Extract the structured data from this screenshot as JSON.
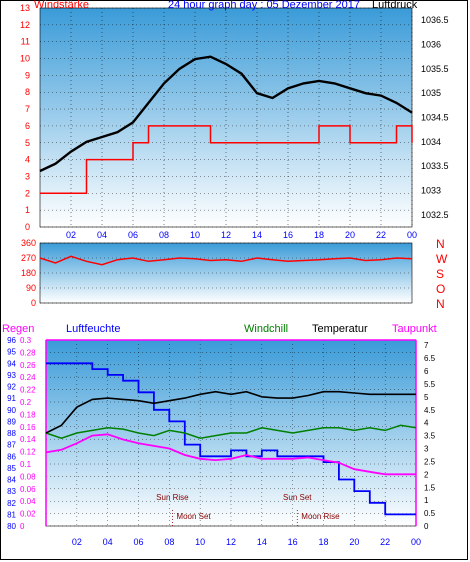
{
  "colors": {
    "wind": "#ff0000",
    "direction": "#0000ff",
    "pressure": "#000000",
    "rain": "#ff0000",
    "humidity": "#0000ff",
    "windchill": "#008000",
    "temperature": "#000000",
    "dewpoint": "#ff00ff",
    "bg_top": "#3a9bd8",
    "bg_bottom": "#ffffff"
  },
  "chart_data": [
    {
      "type": "line",
      "title": "24 hour graph day : 05 Dezember 2017",
      "left_label": "Windstärke",
      "right_label": "Luftdruck",
      "x_ticks": [
        "02",
        "04",
        "06",
        "08",
        "10",
        "12",
        "14",
        "16",
        "18",
        "20",
        "22",
        "00"
      ],
      "y_left_ticks": [
        "0",
        "1",
        "2",
        "3",
        "4",
        "5",
        "6",
        "7",
        "8",
        "9",
        "10",
        "11",
        "12",
        "13"
      ],
      "y_left_range": [
        0,
        13
      ],
      "y_right_ticks": [
        "1032.5",
        "1033",
        "1033.5",
        "1034",
        "1034.5",
        "1035",
        "1035.5",
        "1036",
        "1036.5"
      ],
      "y_right_range": [
        1032.25,
        1036.75
      ],
      "series": [
        {
          "name": "Windstärke",
          "axis": "left",
          "x": [
            0,
            1,
            2,
            3,
            4,
            5,
            6,
            7,
            8,
            9,
            10,
            11,
            12,
            13,
            14,
            15,
            16,
            17,
            18,
            19,
            20,
            21,
            22,
            23,
            24
          ],
          "values": [
            2,
            2,
            2,
            4,
            4,
            4,
            5,
            6,
            6,
            6,
            6,
            5,
            5,
            5,
            5,
            5,
            5,
            5,
            6,
            6,
            5,
            5,
            5,
            6,
            5
          ]
        },
        {
          "name": "Luftdruck",
          "axis": "right",
          "x": [
            0,
            1,
            2,
            3,
            4,
            5,
            6,
            7,
            8,
            9,
            10,
            11,
            12,
            13,
            14,
            15,
            16,
            17,
            18,
            19,
            20,
            21,
            22,
            23,
            24
          ],
          "values": [
            1033.4,
            1033.55,
            1033.8,
            1034.0,
            1034.1,
            1034.2,
            1034.4,
            1034.8,
            1035.2,
            1035.5,
            1035.7,
            1035.75,
            1035.6,
            1035.4,
            1035.0,
            1034.9,
            1035.1,
            1035.2,
            1035.25,
            1035.2,
            1035.1,
            1035.0,
            1034.95,
            1034.8,
            1034.6
          ]
        }
      ]
    },
    {
      "type": "line",
      "title": "",
      "y_ticks": [
        "0",
        "90",
        "180",
        "270",
        "360"
      ],
      "y_range": [
        0,
        360
      ],
      "right_labels": [
        "N",
        "W",
        "S",
        "O",
        "N"
      ],
      "series": [
        {
          "name": "",
          "x": [
            0,
            1,
            2,
            3,
            4,
            5,
            6,
            7,
            8,
            9,
            10,
            11,
            12,
            13,
            14,
            15,
            16,
            17,
            18,
            19,
            20,
            21,
            22,
            23,
            24
          ],
          "values": [
            270,
            240,
            280,
            250,
            230,
            260,
            270,
            250,
            260,
            270,
            265,
            255,
            260,
            250,
            270,
            260,
            250,
            255,
            260,
            265,
            270,
            255,
            260,
            270,
            265
          ]
        }
      ]
    },
    {
      "type": "line",
      "title": "",
      "labels": [
        "Regen",
        "Luftfeuchte",
        "Windchill",
        "Temperatur",
        "Taupunkt"
      ],
      "x_ticks": [
        "02",
        "04",
        "06",
        "08",
        "10",
        "12",
        "14",
        "16",
        "18",
        "20",
        "22",
        "00"
      ],
      "y_humidity_ticks": [
        "80",
        "81",
        "82",
        "83",
        "84",
        "85",
        "86",
        "87",
        "88",
        "89",
        "90",
        "91",
        "92",
        "93",
        "94",
        "95",
        "96"
      ],
      "y_humidity_range": [
        80,
        96
      ],
      "y_rain_ticks": [
        "0",
        "0.02",
        "0.04",
        "0.06",
        "0.08",
        "0.1",
        "0.12",
        "0.14",
        "0.16",
        "0.18",
        "0.2",
        "0.22",
        "0.24",
        "0.26",
        "0.28",
        "0.3"
      ],
      "y_rain_range": [
        0,
        0.3
      ],
      "y_temp_ticks": [
        "0",
        "0.5",
        "1",
        "1.5",
        "2",
        "2.5",
        "3",
        "3.5",
        "4",
        "4.5",
        "5",
        "5.5",
        "6",
        "6.5",
        "7"
      ],
      "y_temp_range": [
        0,
        7.2
      ],
      "series": [
        {
          "name": "Luftfeuchte",
          "axis": "humidity",
          "x": [
            0,
            1,
            2,
            3,
            4,
            5,
            6,
            7,
            8,
            9,
            10,
            11,
            12,
            13,
            14,
            15,
            16,
            17,
            18,
            19,
            20,
            21,
            22,
            23,
            24
          ],
          "values": [
            94,
            94,
            94,
            93.5,
            93,
            92.5,
            91.5,
            90,
            89,
            87,
            86,
            86,
            86.5,
            86,
            86.5,
            86,
            86,
            86,
            85.5,
            84,
            83,
            82,
            81,
            81,
            81
          ]
        },
        {
          "name": "Temperatur",
          "axis": "temp",
          "x": [
            0,
            1,
            2,
            3,
            4,
            5,
            6,
            7,
            8,
            9,
            10,
            11,
            12,
            13,
            14,
            15,
            16,
            17,
            18,
            19,
            20,
            21,
            22,
            23,
            24
          ],
          "values": [
            3.6,
            3.9,
            4.6,
            4.9,
            4.95,
            4.9,
            4.85,
            4.75,
            4.85,
            4.95,
            5.1,
            5.2,
            5.1,
            5.2,
            5.0,
            4.95,
            4.95,
            5.05,
            5.2,
            5.2,
            5.15,
            5.1,
            5.1,
            5.1,
            5.1
          ]
        },
        {
          "name": "Taupunkt",
          "axis": "temp",
          "x": [
            0,
            1,
            2,
            3,
            4,
            5,
            6,
            7,
            8,
            9,
            10,
            11,
            12,
            13,
            14,
            15,
            16,
            17,
            18,
            19,
            20,
            21,
            22,
            23,
            24
          ],
          "values": [
            2.85,
            2.95,
            3.2,
            3.5,
            3.55,
            3.35,
            3.2,
            3.1,
            3.0,
            2.75,
            2.6,
            2.55,
            2.6,
            2.75,
            2.6,
            2.6,
            2.6,
            2.65,
            2.55,
            2.45,
            2.2,
            2.1,
            2.0,
            2.0,
            2.0
          ]
        },
        {
          "name": "Windchill",
          "axis": "temp",
          "x": [
            0,
            1,
            2,
            3,
            4,
            5,
            6,
            7,
            8,
            9,
            10,
            11,
            12,
            13,
            14,
            15,
            16,
            17,
            18,
            19,
            20,
            21,
            22,
            23,
            24
          ],
          "values": [
            3.6,
            3.4,
            3.6,
            3.7,
            3.8,
            3.75,
            3.6,
            3.5,
            3.7,
            3.6,
            3.4,
            3.5,
            3.6,
            3.6,
            3.8,
            3.7,
            3.6,
            3.7,
            3.8,
            3.8,
            3.7,
            3.8,
            3.7,
            3.9,
            3.8
          ]
        }
      ],
      "annotations": [
        {
          "text": "Sun Rise",
          "x": 8.2
        },
        {
          "text": "Moon Set",
          "x": 8.2
        },
        {
          "text": "Sun Set",
          "x": 16.3
        },
        {
          "text": "Moon Rise",
          "x": 16.3
        }
      ]
    }
  ]
}
